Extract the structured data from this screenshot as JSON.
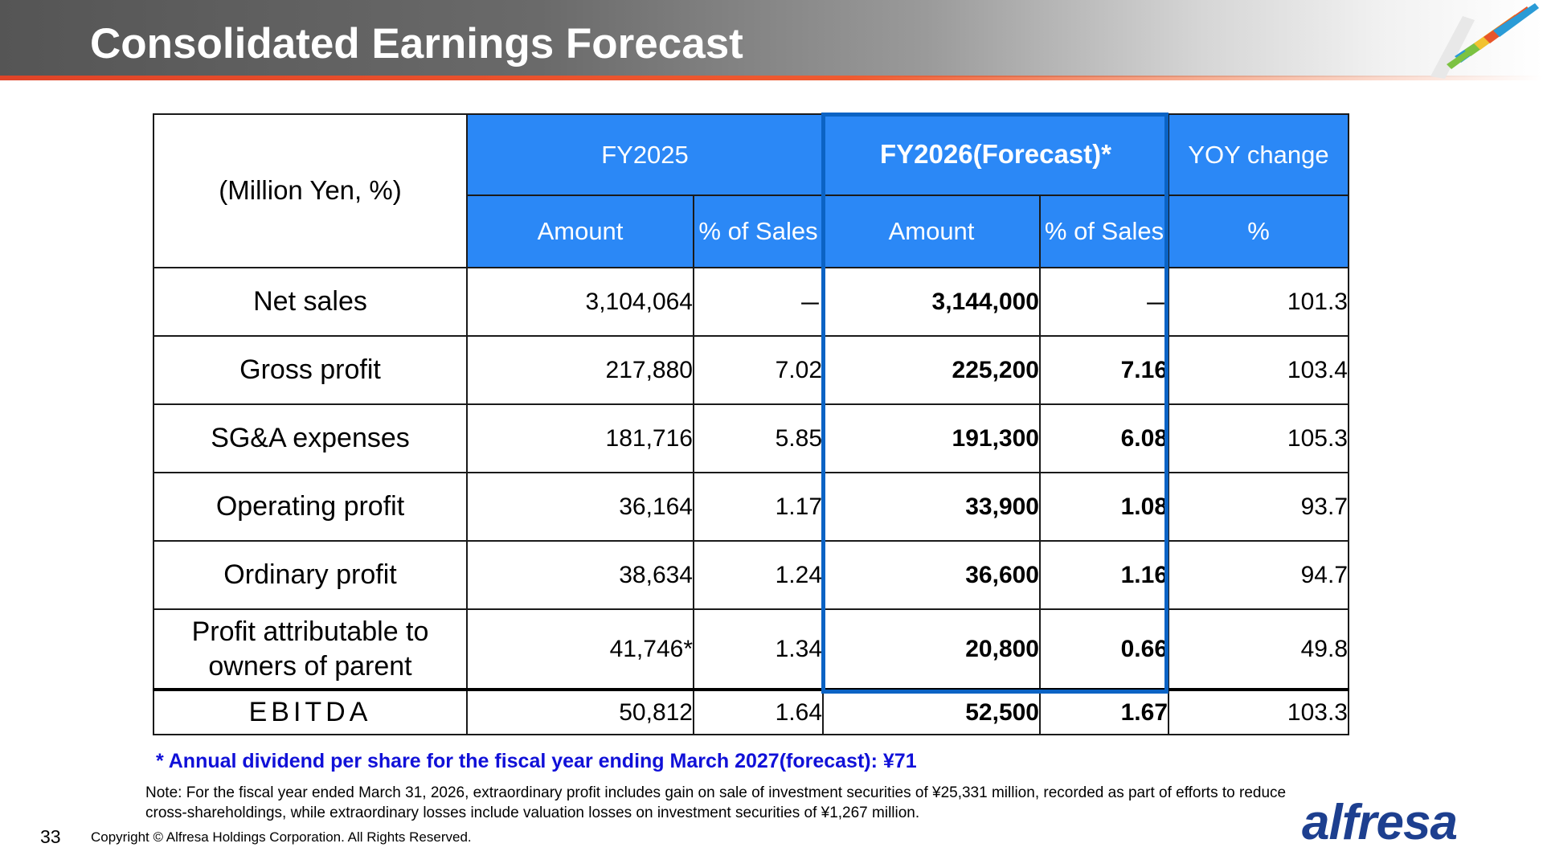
{
  "slide": {
    "title": "Consolidated Earnings Forecast",
    "page_number": "33",
    "copyright": "Copyright © Alfresa Holdings Corporation. All Rights Reserved.",
    "logo_text": "alfresa",
    "colors": {
      "header_blue": "#2b88f6",
      "forecast_frame": "#0b63c4",
      "dividend_text": "#1010d8",
      "accent_line": "#e04428"
    }
  },
  "table": {
    "corner_label": "(Million Yen, %)",
    "group_headers": {
      "fy2025": "FY2025",
      "fy2026": "FY2026(Forecast)*",
      "yoy": "YOY change"
    },
    "sub_headers": {
      "amount_2025": "Amount",
      "pct_2025": "% of Sales",
      "amount_2026": "Amount",
      "pct_2026": "% of Sales",
      "yoy_pct": "%"
    },
    "rows": [
      {
        "label": "Net sales",
        "fy2025_amount": "3,104,064",
        "fy2025_pct": "－",
        "fy2026_amount": "3,144,000",
        "fy2026_pct": "－",
        "yoy": "101.3"
      },
      {
        "label": "Gross profit",
        "fy2025_amount": "217,880",
        "fy2025_pct": "7.02",
        "fy2026_amount": "225,200",
        "fy2026_pct": "7.16",
        "yoy": "103.4"
      },
      {
        "label": "SG&A expenses",
        "fy2025_amount": "181,716",
        "fy2025_pct": "5.85",
        "fy2026_amount": "191,300",
        "fy2026_pct": "6.08",
        "yoy": "105.3"
      },
      {
        "label": "Operating profit",
        "fy2025_amount": "36,164",
        "fy2025_pct": "1.17",
        "fy2026_amount": "33,900",
        "fy2026_pct": "1.08",
        "yoy": "93.7"
      },
      {
        "label": "Ordinary profit",
        "fy2025_amount": "38,634",
        "fy2025_pct": "1.24",
        "fy2026_amount": "36,600",
        "fy2026_pct": "1.16",
        "yoy": "94.7"
      },
      {
        "label": "Profit attributable to owners of parent",
        "fy2025_amount": "41,746*",
        "fy2025_pct": "1.34",
        "fy2026_amount": "20,800",
        "fy2026_pct": "0.66",
        "yoy": "49.8"
      },
      {
        "label": "EBITDA",
        "fy2025_amount": "50,812",
        "fy2025_pct": "1.64",
        "fy2026_amount": "52,500",
        "fy2026_pct": "1.67",
        "yoy": "103.3"
      }
    ]
  },
  "notes": {
    "dividend": "* Annual dividend per share for the fiscal year ending March 2027(forecast): ¥71",
    "footnote": "Note: For the fiscal year ended March 31, 2026, extraordinary profit includes gain on sale of investment securities of ¥25,331 million, recorded as part of efforts to reduce cross-shareholdings, while extraordinary losses include valuation losses on investment securities of ¥1,267 million."
  }
}
